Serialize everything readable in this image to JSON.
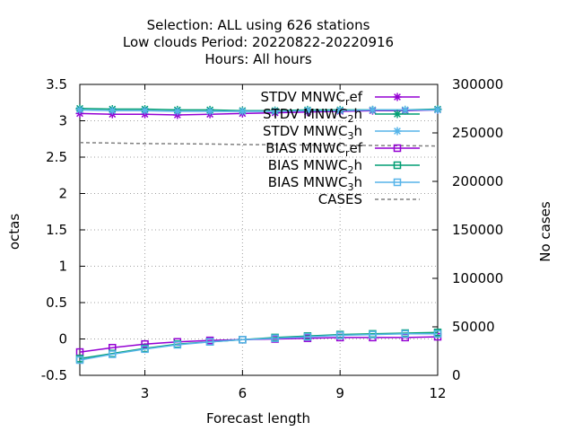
{
  "chart_data": {
    "type": "line",
    "title_lines": [
      "Selection: ALL using   626 stations",
      "Low clouds   Period: 20220822-20220916",
      "Hours:  All hours"
    ],
    "xlabel": "Forecast length",
    "ylabel": "octas",
    "y2label": "No cases",
    "xlim": [
      1,
      12
    ],
    "ylim": [
      -0.5,
      3.5
    ],
    "y2lim": [
      0,
      300000
    ],
    "xticks": [
      3,
      6,
      9,
      12
    ],
    "yticks": [
      -0.5,
      0,
      0.5,
      1,
      1.5,
      2,
      2.5,
      3,
      3.5
    ],
    "y2ticks": [
      0,
      50000,
      100000,
      150000,
      200000,
      250000,
      300000
    ],
    "grid": true,
    "legend_position": "top-right",
    "x": [
      1,
      2,
      3,
      4,
      5,
      6,
      7,
      8,
      9,
      10,
      11,
      12
    ],
    "series": [
      {
        "name_base": "STDV MNWC",
        "name_sub": "r",
        "name_tail": "ef",
        "axis": "y",
        "color": "#9400d3",
        "marker": "asterisk",
        "values": [
          3.1,
          3.09,
          3.09,
          3.08,
          3.09,
          3.1,
          3.11,
          3.12,
          3.13,
          3.14,
          3.14,
          3.15
        ]
      },
      {
        "name_base": "STDV MNWC",
        "name_sub": "2",
        "name_tail": "h",
        "axis": "y",
        "color": "#009e73",
        "marker": "asterisk",
        "values": [
          3.17,
          3.16,
          3.16,
          3.15,
          3.15,
          3.14,
          3.14,
          3.15,
          3.15,
          3.15,
          3.15,
          3.16
        ]
      },
      {
        "name_base": "STDV MNWC",
        "name_sub": "3",
        "name_tail": "h",
        "axis": "y",
        "color": "#56b4e9",
        "marker": "asterisk",
        "values": [
          3.15,
          3.14,
          3.14,
          3.13,
          3.13,
          3.13,
          3.13,
          3.14,
          3.14,
          3.15,
          3.15,
          3.15
        ]
      },
      {
        "name_base": "BIAS MNWC",
        "name_sub": "r",
        "name_tail": "ef",
        "axis": "y",
        "color": "#9400d3",
        "marker": "square",
        "values": [
          -0.18,
          -0.12,
          -0.07,
          -0.04,
          -0.02,
          -0.01,
          0.0,
          0.01,
          0.02,
          0.02,
          0.02,
          0.03
        ]
      },
      {
        "name_base": "BIAS MNWC",
        "name_sub": "2",
        "name_tail": "h",
        "axis": "y",
        "color": "#009e73",
        "marker": "square",
        "values": [
          -0.27,
          -0.2,
          -0.13,
          -0.07,
          -0.04,
          -0.01,
          0.02,
          0.04,
          0.06,
          0.07,
          0.08,
          0.09
        ]
      },
      {
        "name_base": "BIAS MNWC",
        "name_sub": "3",
        "name_tail": "h",
        "axis": "y",
        "color": "#56b4e9",
        "marker": "square",
        "values": [
          -0.29,
          -0.21,
          -0.14,
          -0.08,
          -0.04,
          -0.01,
          0.01,
          0.03,
          0.05,
          0.06,
          0.07,
          0.07
        ]
      },
      {
        "name_base": "CASES",
        "name_sub": "",
        "name_tail": "",
        "axis": "y2",
        "color": "#808080",
        "marker": "none",
        "dashed": true,
        "values": [
          240000,
          239500,
          239000,
          238800,
          238500,
          238000,
          237800,
          237500,
          237200,
          237000,
          236800,
          236500
        ]
      }
    ]
  }
}
